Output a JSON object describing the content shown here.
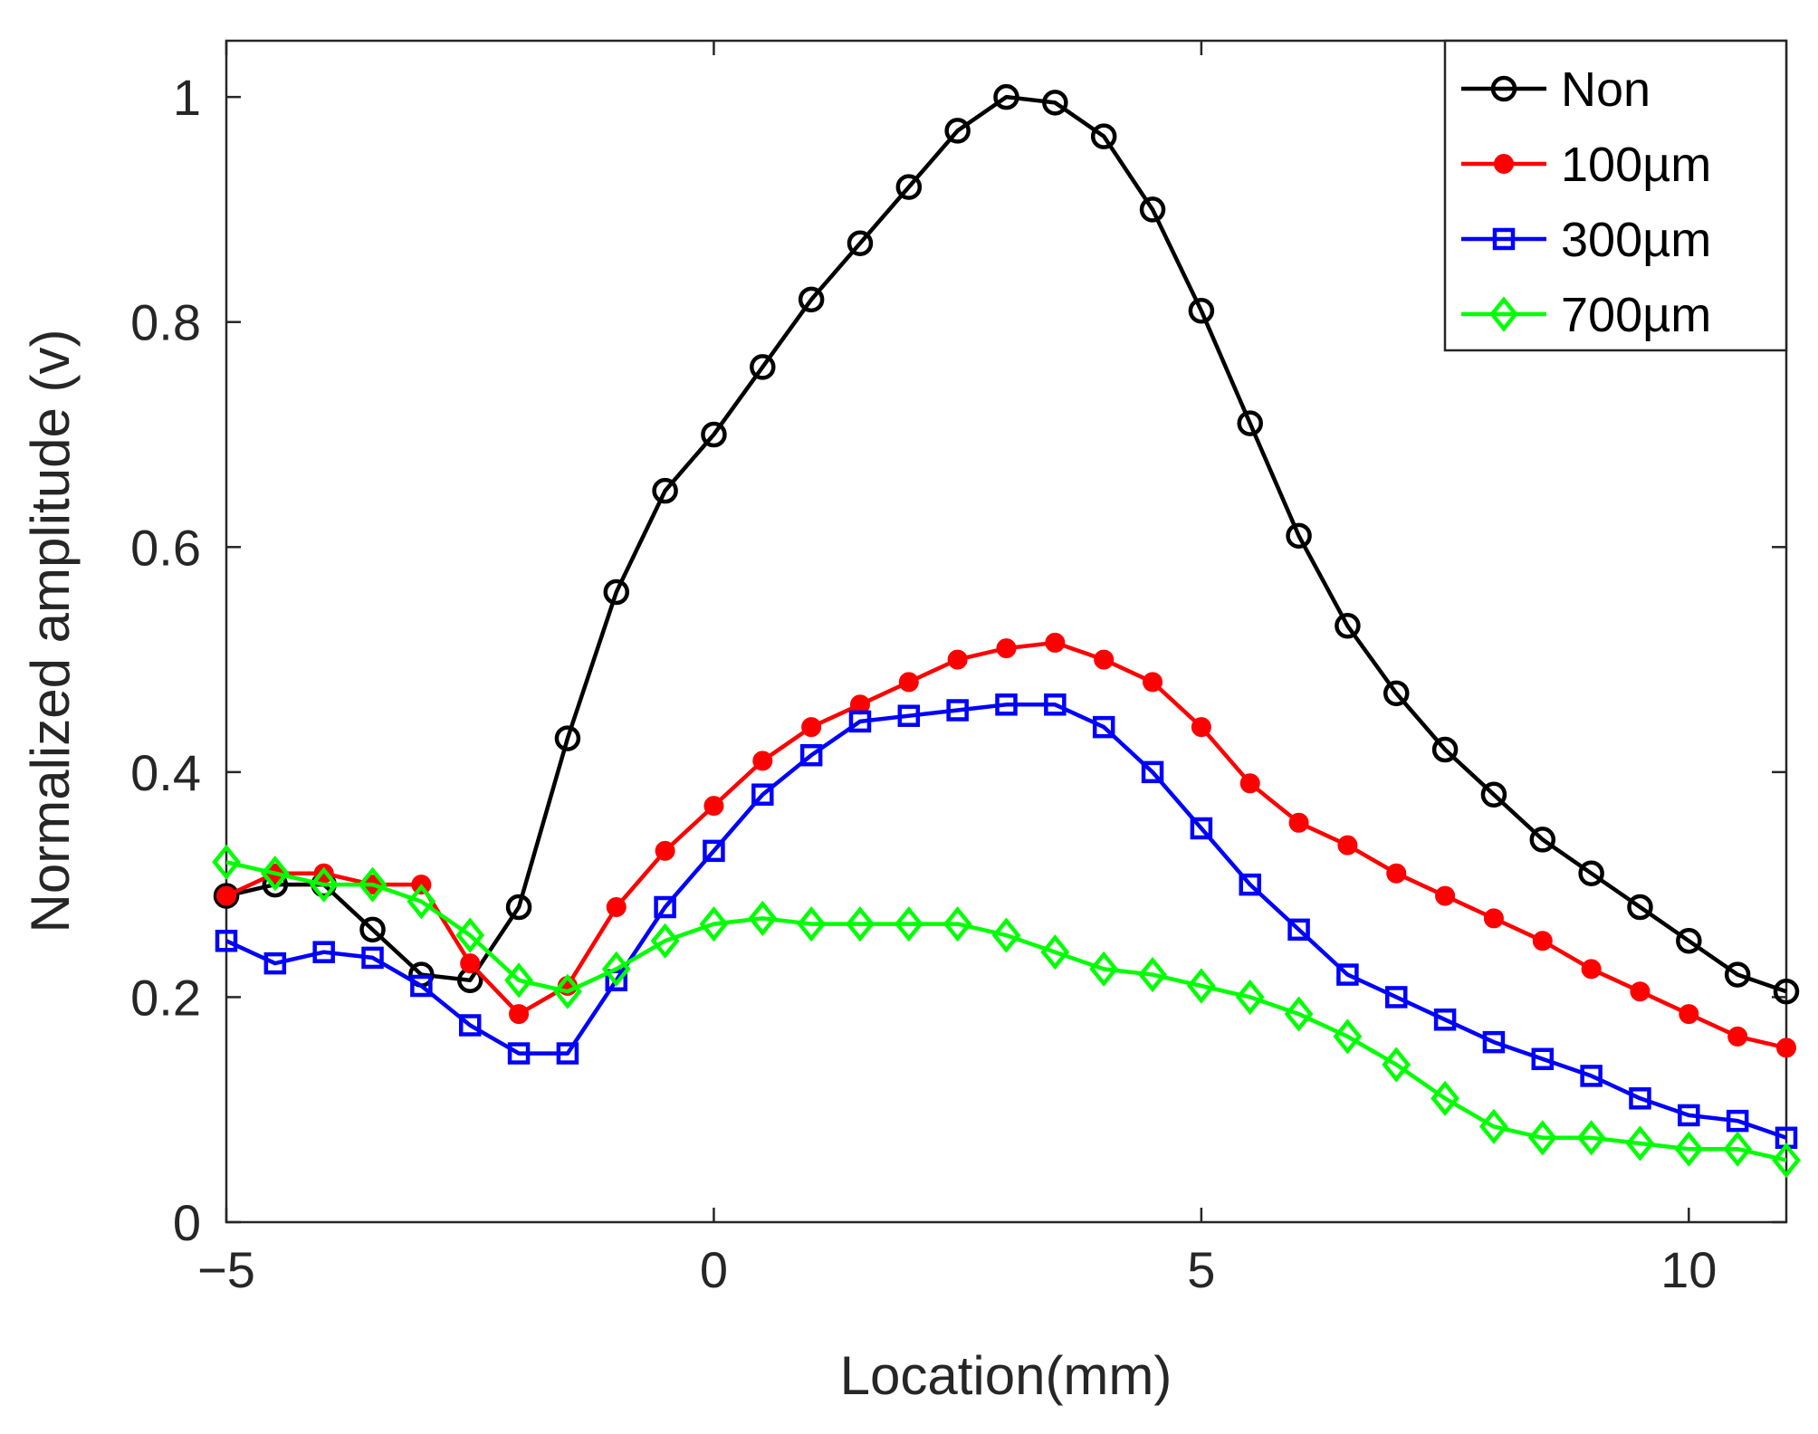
{
  "chart_data": {
    "type": "line",
    "title": "",
    "xlabel": "Location(mm)",
    "ylabel": "Normalized amplitude (v)",
    "xlim": [
      -5,
      11
    ],
    "ylim": [
      0,
      1.05
    ],
    "xticks": [
      -5,
      0,
      5,
      10
    ],
    "xtick_labels": [
      "−5",
      "0",
      "5",
      "10"
    ],
    "yticks": [
      0,
      0.2,
      0.4,
      0.6,
      0.8,
      1
    ],
    "ytick_labels": [
      "0",
      "0.2",
      "0.4",
      "0.6",
      "0.8",
      "1"
    ],
    "grid": false,
    "legend_position": "top-right",
    "x": [
      -5,
      -4.5,
      -4,
      -3.5,
      -3,
      -2.5,
      -2,
      -1.5,
      -1,
      -0.5,
      0,
      0.5,
      1,
      1.5,
      2,
      2.5,
      3,
      3.5,
      4,
      4.5,
      5,
      5.5,
      6,
      6.5,
      7,
      7.5,
      8,
      8.5,
      9,
      9.5,
      10,
      10.5,
      11
    ],
    "series": [
      {
        "name": "Non",
        "color": "#000000",
        "marker": "circle",
        "values": [
          0.29,
          0.3,
          0.3,
          0.26,
          0.22,
          0.215,
          0.28,
          0.43,
          0.56,
          0.65,
          0.7,
          0.76,
          0.82,
          0.87,
          0.92,
          0.97,
          1.0,
          0.995,
          0.965,
          0.9,
          0.81,
          0.71,
          0.61,
          0.53,
          0.47,
          0.42,
          0.38,
          0.34,
          0.31,
          0.28,
          0.25,
          0.22,
          0.205
        ]
      },
      {
        "name": "100µm",
        "color": "#ff0000",
        "marker": "dot",
        "values": [
          0.29,
          0.31,
          0.31,
          0.3,
          0.3,
          0.23,
          0.185,
          0.21,
          0.28,
          0.33,
          0.37,
          0.41,
          0.44,
          0.46,
          0.48,
          0.5,
          0.51,
          0.515,
          0.5,
          0.48,
          0.44,
          0.39,
          0.355,
          0.335,
          0.31,
          0.29,
          0.27,
          0.25,
          0.225,
          0.205,
          0.185,
          0.165,
          0.155
        ]
      },
      {
        "name": "300µm",
        "color": "#0000ff",
        "marker": "square",
        "values": [
          0.25,
          0.23,
          0.24,
          0.235,
          0.21,
          0.175,
          0.15,
          0.15,
          0.215,
          0.28,
          0.33,
          0.38,
          0.415,
          0.445,
          0.45,
          0.455,
          0.46,
          0.46,
          0.44,
          0.4,
          0.35,
          0.3,
          0.26,
          0.22,
          0.2,
          0.18,
          0.16,
          0.145,
          0.13,
          0.11,
          0.095,
          0.09,
          0.075
        ]
      },
      {
        "name": "700µm",
        "color": "#00ff00",
        "marker": "diamond",
        "values": [
          0.32,
          0.31,
          0.3,
          0.3,
          0.285,
          0.255,
          0.215,
          0.205,
          0.225,
          0.25,
          0.265,
          0.27,
          0.265,
          0.265,
          0.265,
          0.265,
          0.255,
          0.24,
          0.225,
          0.22,
          0.21,
          0.2,
          0.185,
          0.165,
          0.14,
          0.11,
          0.085,
          0.075,
          0.075,
          0.07,
          0.065,
          0.065,
          0.055
        ]
      }
    ]
  }
}
